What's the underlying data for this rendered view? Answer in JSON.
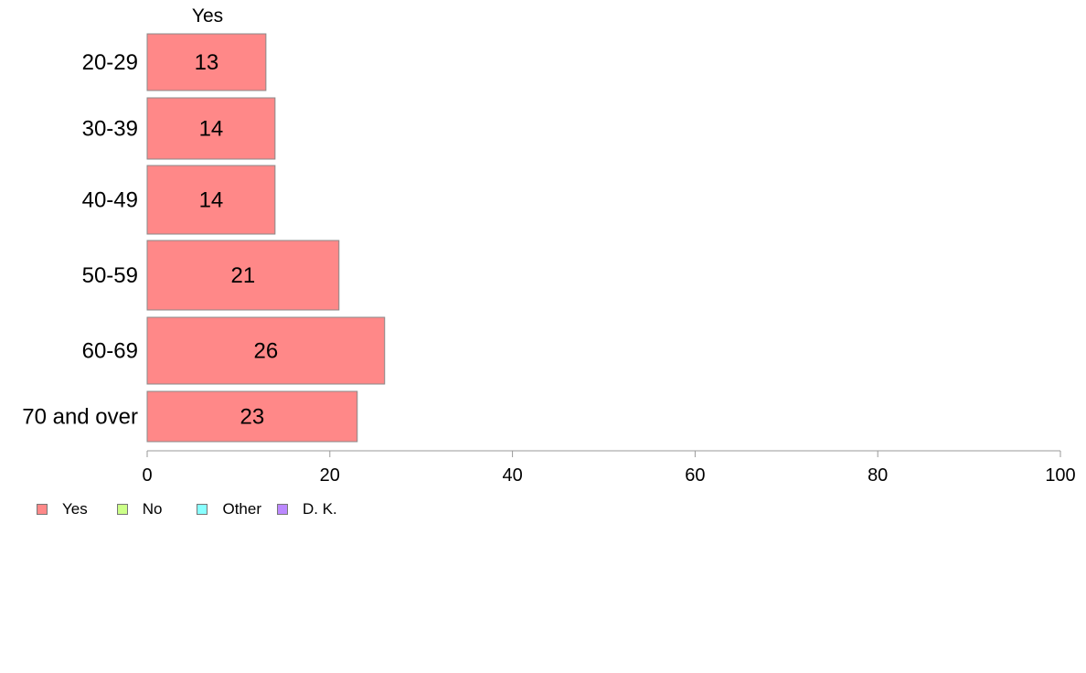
{
  "chart_data": {
    "type": "bar",
    "orientation": "horizontal",
    "top_label": "Yes",
    "categories": [
      "20-29",
      "30-39",
      "40-49",
      "50-59",
      "60-69",
      "70 and over"
    ],
    "series": [
      {
        "name": "Yes",
        "values": [
          13,
          14,
          14,
          21,
          26,
          23
        ],
        "color": "#ff8888"
      }
    ],
    "value_labels": [
      "13",
      "14",
      "14",
      "21",
      "26",
      "23"
    ],
    "xlim": [
      0,
      100
    ],
    "xticks": [
      0,
      20,
      40,
      60,
      80,
      100
    ],
    "grid": false,
    "legend": {
      "placement": "bottom-left",
      "entries": [
        {
          "label": "Yes",
          "color": "#ff8888"
        },
        {
          "label": "No",
          "color": "#ccff88"
        },
        {
          "label": "Other",
          "color": "#88ffff"
        },
        {
          "label": "D. K.",
          "color": "#bb88ff"
        }
      ]
    }
  }
}
